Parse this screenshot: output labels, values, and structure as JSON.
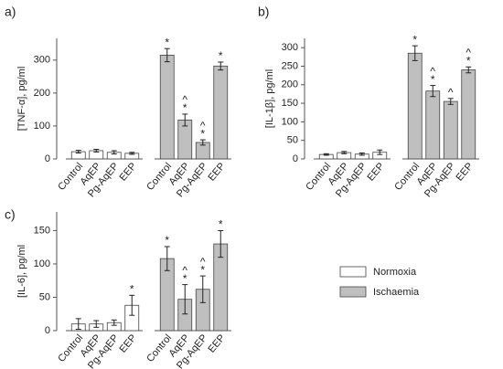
{
  "chart_data": [
    {
      "type": "bar",
      "panel": "a)",
      "ylabel": "[TNF-α], pg/ml",
      "categories": [
        "Control",
        "AqEP",
        "Pg-AqEP",
        "EEP"
      ],
      "ylim": [
        0,
        366
      ],
      "yticks": [
        0,
        100,
        200,
        300
      ],
      "series": [
        {
          "color": "#ffffff",
          "values": [
            22,
            25,
            20,
            17
          ],
          "errors": [
            4,
            4,
            5,
            3
          ],
          "annotations": [
            [],
            [],
            [],
            []
          ]
        },
        {
          "color": "#bfbfbf",
          "values": [
            315,
            118,
            50,
            282
          ],
          "errors": [
            20,
            18,
            8,
            12
          ],
          "annotations": [
            [
              "*"
            ],
            [
              "^",
              "*"
            ],
            [
              "^",
              "*"
            ],
            [
              "*"
            ]
          ]
        }
      ]
    },
    {
      "type": "bar",
      "panel": "b)",
      "ylabel": "[IL-1β], pg/ml",
      "categories": [
        "Control",
        "AqEP",
        "Pg-AqEP",
        "EEP"
      ],
      "ylim": [
        0,
        325
      ],
      "yticks": [
        0,
        50,
        100,
        150,
        200,
        250,
        300
      ],
      "series": [
        {
          "color": "#ffffff",
          "values": [
            12,
            17,
            13,
            18
          ],
          "errors": [
            2,
            3,
            3,
            6
          ],
          "annotations": [
            [],
            [],
            [],
            []
          ]
        },
        {
          "color": "#bfbfbf",
          "values": [
            285,
            183,
            155,
            240
          ],
          "errors": [
            20,
            15,
            8,
            8
          ],
          "annotations": [
            [
              "*"
            ],
            [
              "^",
              "*"
            ],
            [
              "^"
            ],
            [
              "^",
              "*"
            ]
          ]
        }
      ]
    },
    {
      "type": "bar",
      "panel": "c)",
      "ylabel": "[IL-6], pg/ml",
      "categories": [
        "Control",
        "AqEP",
        "Pg-AqEP",
        "EEP"
      ],
      "ylim": [
        0,
        178
      ],
      "yticks": [
        0,
        50,
        100,
        150
      ],
      "series": [
        {
          "color": "#ffffff",
          "values": [
            10,
            10,
            12,
            38
          ],
          "errors": [
            8,
            5,
            4,
            15
          ],
          "annotations": [
            [],
            [],
            [],
            [
              "*"
            ]
          ]
        },
        {
          "color": "#bfbfbf",
          "values": [
            108,
            47,
            62,
            130
          ],
          "errors": [
            18,
            22,
            20,
            20
          ],
          "annotations": [
            [
              "*"
            ],
            [
              "^",
              "*"
            ],
            [
              "^",
              "*"
            ],
            [
              "*"
            ]
          ]
        }
      ]
    }
  ],
  "legend": [
    {
      "name": "Normoxia",
      "color": "#ffffff"
    },
    {
      "name": "Ischaemia",
      "color": "#bfbfbf"
    }
  ]
}
